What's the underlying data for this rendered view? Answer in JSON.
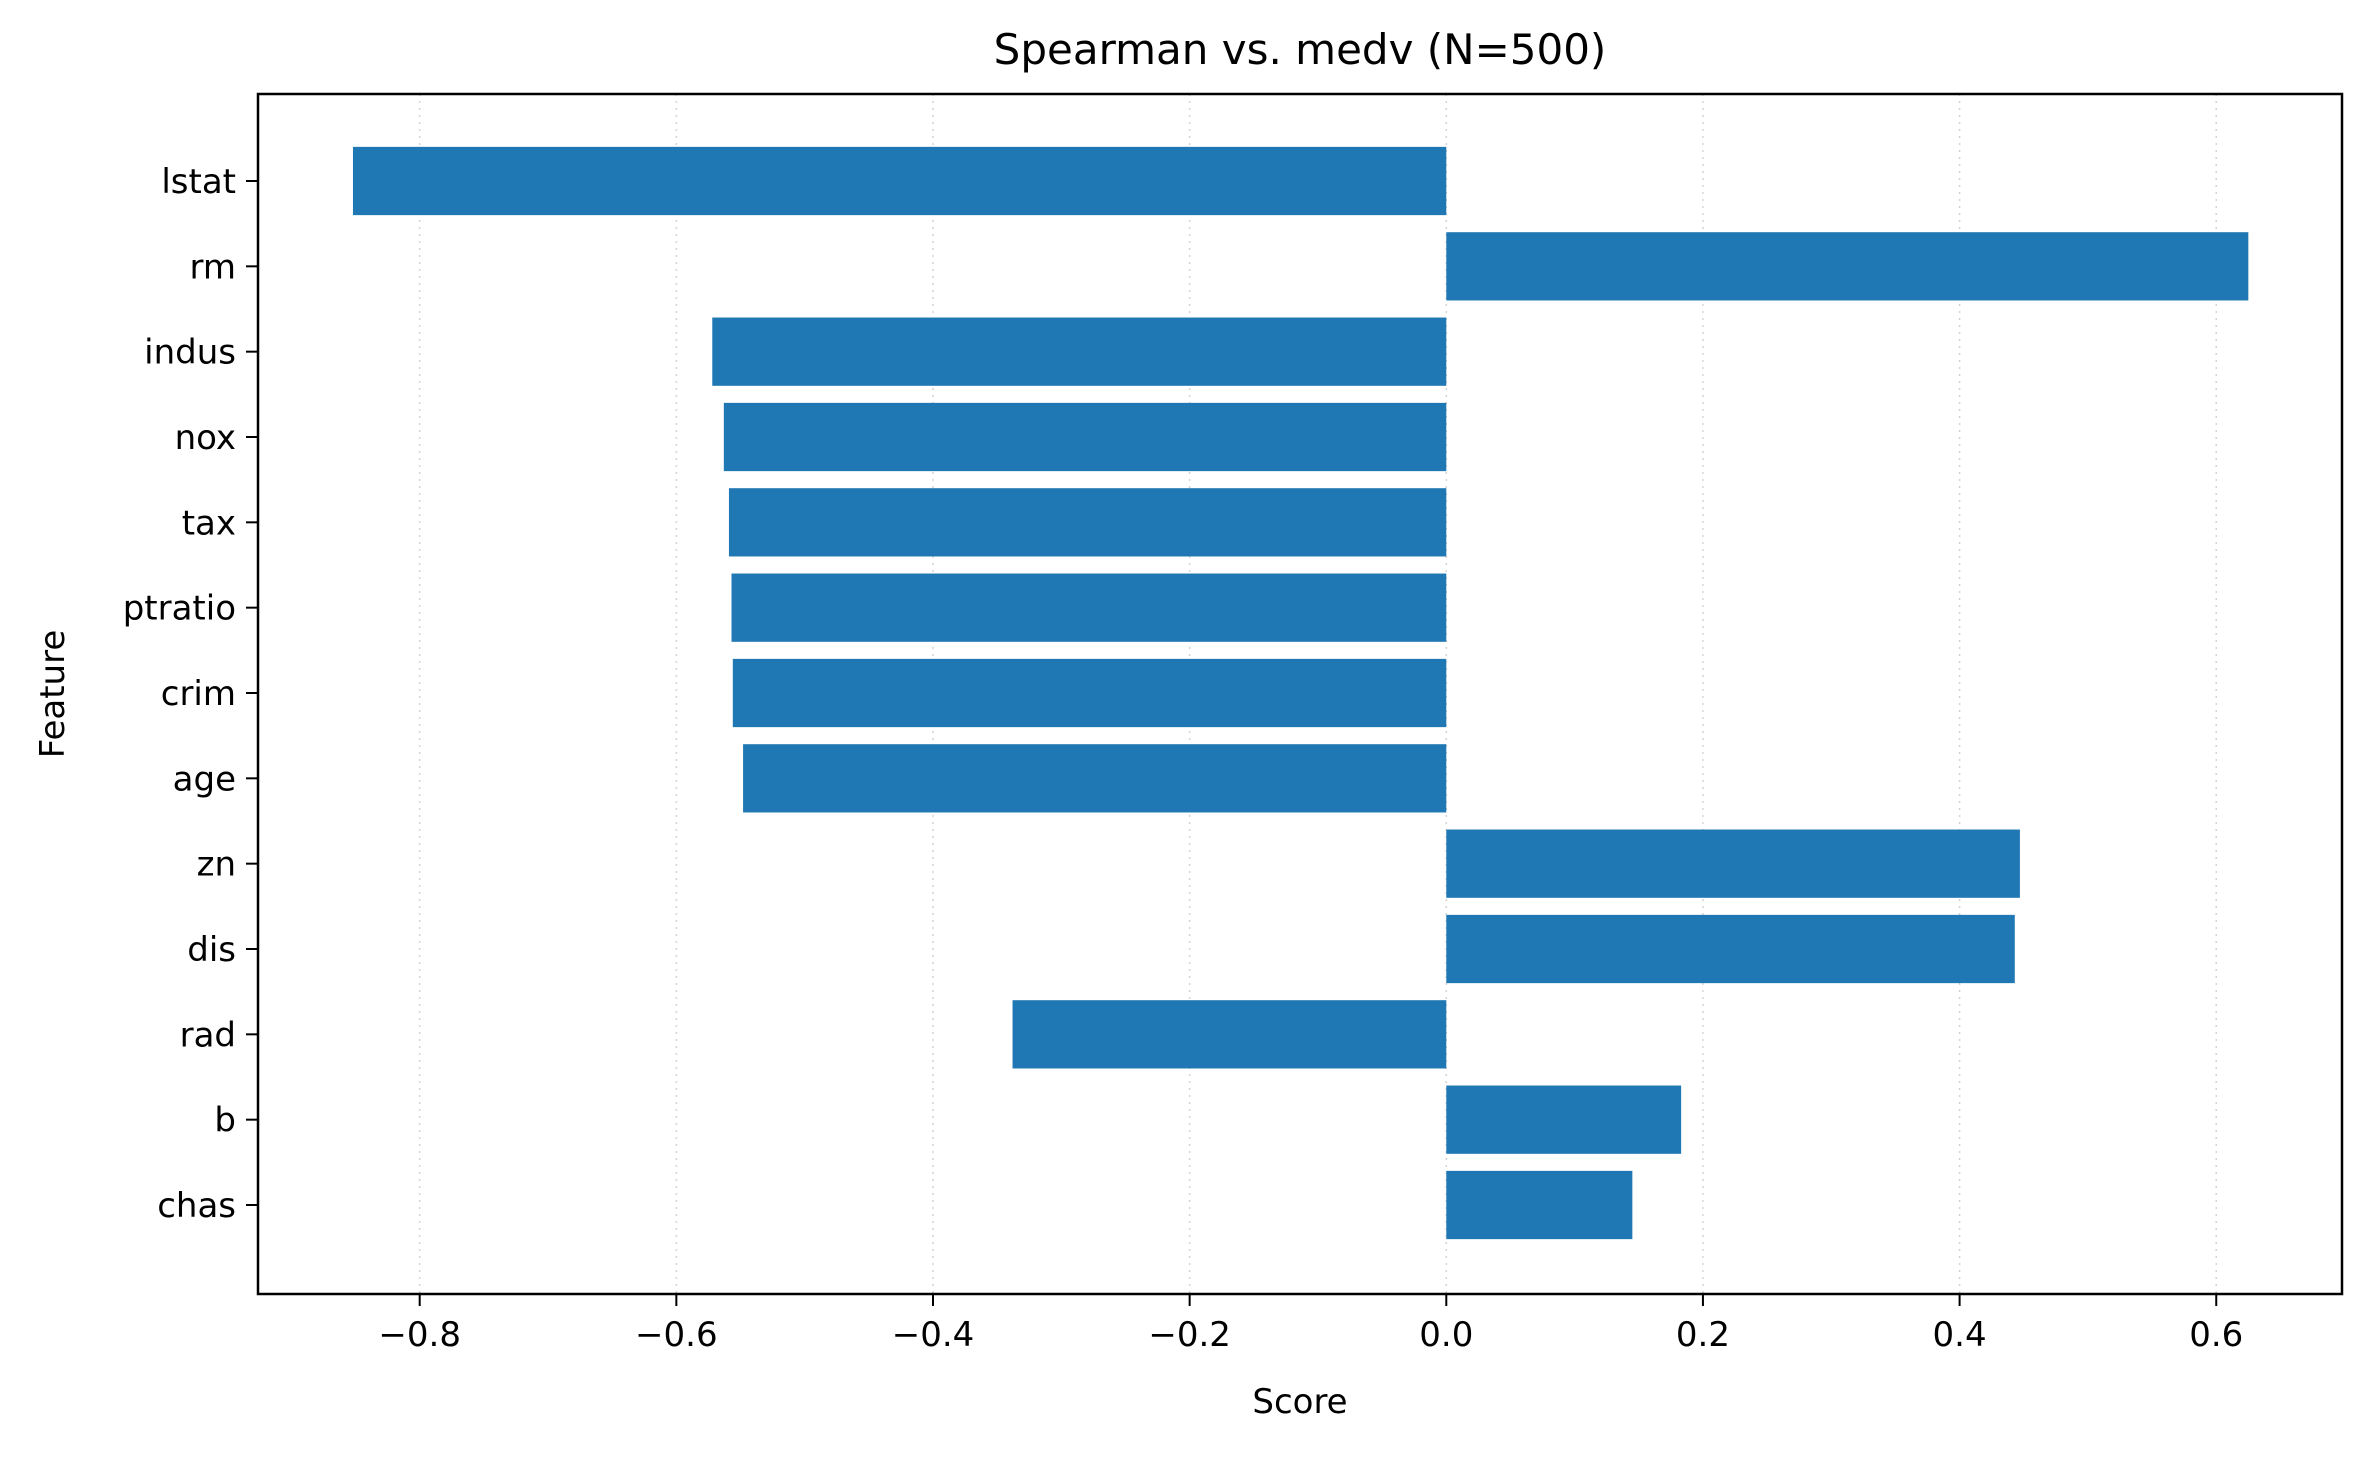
{
  "chart_data": {
    "type": "bar",
    "orientation": "horizontal",
    "title": "Spearman vs. medv  (N=500)",
    "xlabel": "Score",
    "ylabel": "Feature",
    "categories": [
      "lstat",
      "rm",
      "indus",
      "nox",
      "tax",
      "ptratio",
      "crim",
      "age",
      "zn",
      "dis",
      "rad",
      "b",
      "chas"
    ],
    "values": [
      -0.852,
      0.625,
      -0.572,
      -0.563,
      -0.559,
      -0.557,
      -0.556,
      -0.548,
      0.447,
      0.443,
      -0.338,
      0.183,
      0.145
    ],
    "xlim": [
      -0.926,
      0.698
    ],
    "xticks": [
      -0.8,
      -0.6,
      -0.4,
      -0.2,
      0.0,
      0.2,
      0.4,
      0.6
    ],
    "xtick_labels": [
      "−0.8",
      "−0.6",
      "−0.4",
      "−0.2",
      "0.0",
      "0.2",
      "0.4",
      "0.6"
    ],
    "bar_color": "#1f77b4",
    "grid": "x-axis dotted"
  }
}
